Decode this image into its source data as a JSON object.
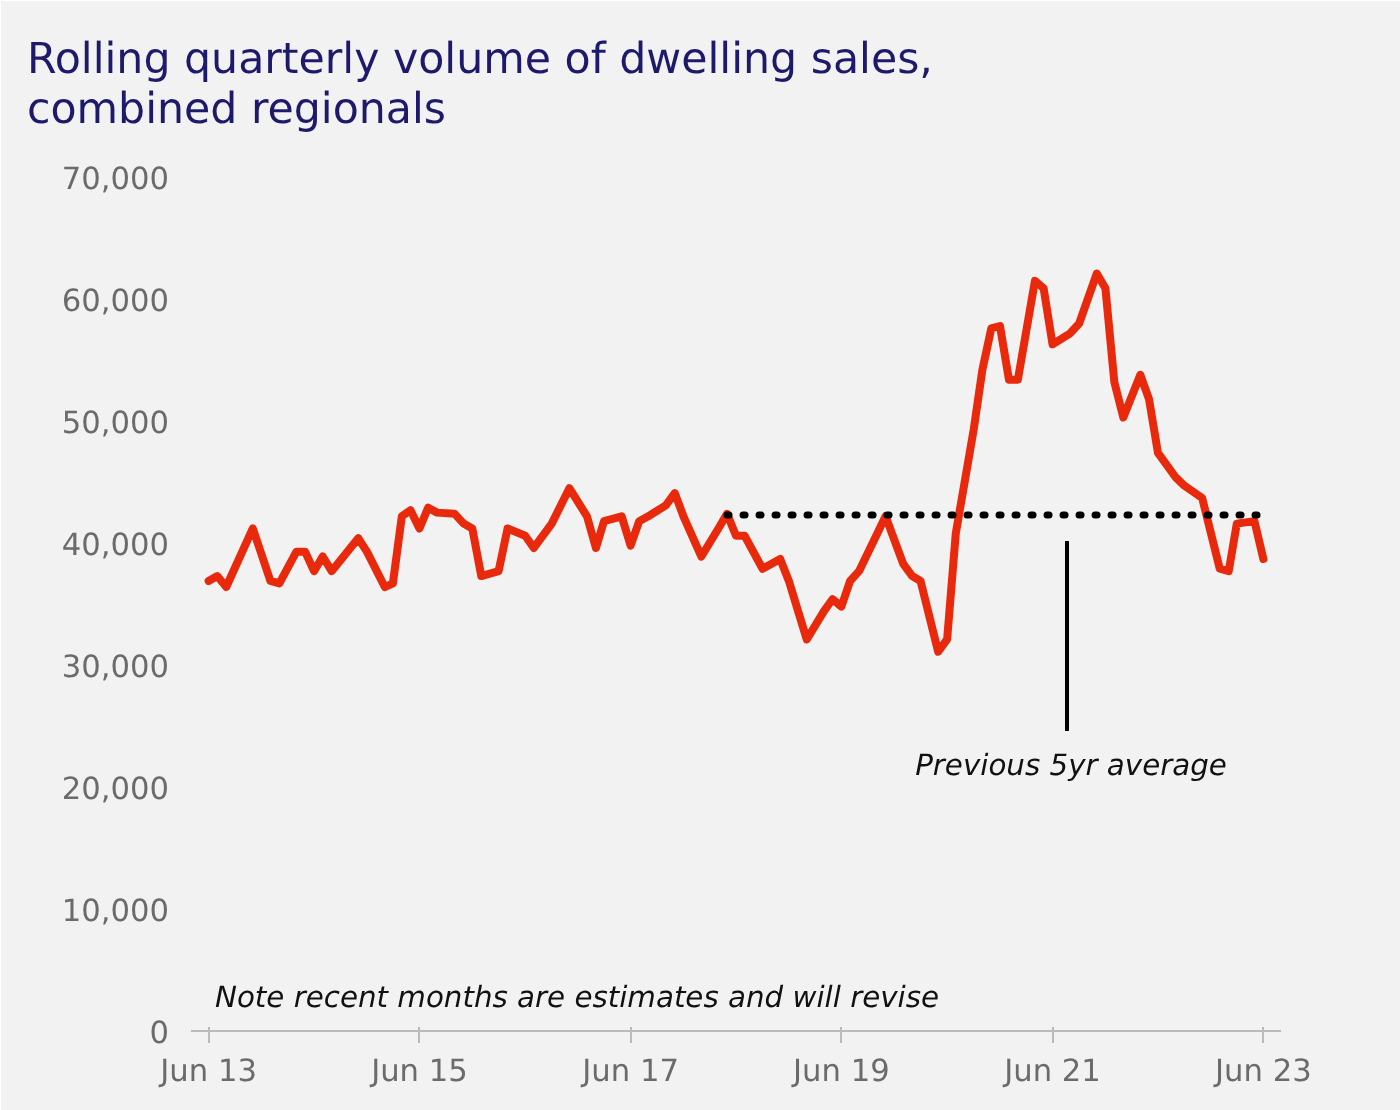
{
  "chart_data": {
    "type": "line",
    "title": "Rolling quarterly volume of dwelling sales, combined regionals",
    "x": [
      "2013-06",
      "2013-07",
      "2013-08",
      "2013-11",
      "2014-01",
      "2014-02",
      "2014-04",
      "2014-05",
      "2014-06",
      "2014-07",
      "2014-08",
      "2014-11",
      "2014-12",
      "2015-02",
      "2015-03",
      "2015-04",
      "2015-05",
      "2015-06",
      "2015-07",
      "2015-08",
      "2015-10",
      "2015-11",
      "2015-12",
      "2016-01",
      "2016-03",
      "2016-04",
      "2016-06",
      "2016-07",
      "2016-09",
      "2016-11",
      "2017-01",
      "2017-02",
      "2017-03",
      "2017-05",
      "2017-06",
      "2017-07",
      "2017-08",
      "2017-10",
      "2017-11",
      "2017-12",
      "2018-02",
      "2018-04",
      "2018-05",
      "2018-06",
      "2018-07",
      "2018-09",
      "2018-11",
      "2018-12",
      "2019-02",
      "2019-04",
      "2019-05",
      "2019-06",
      "2019-07",
      "2019-08",
      "2019-11",
      "2020-01",
      "2020-02",
      "2020-03",
      "2020-05",
      "2020-06",
      "2020-07",
      "2020-09",
      "2020-10",
      "2020-11",
      "2020-12",
      "2021-01",
      "2021-02",
      "2021-04",
      "2021-05",
      "2021-06",
      "2021-08",
      "2021-09",
      "2021-11",
      "2021-12",
      "2022-01",
      "2022-02",
      "2022-04",
      "2022-05",
      "2022-06",
      "2022-08",
      "2022-09",
      "2022-11",
      "2023-01",
      "2023-02",
      "2023-03",
      "2023-05",
      "2023-06"
    ],
    "series": [
      {
        "color": "#e8290b",
        "values": [
          36900,
          37300,
          36400,
          41200,
          36900,
          36700,
          39300,
          39300,
          37700,
          38900,
          37700,
          40400,
          39300,
          36400,
          36700,
          42200,
          42700,
          41200,
          42900,
          42500,
          42400,
          41600,
          41200,
          37300,
          37700,
          41200,
          40600,
          39600,
          41600,
          44500,
          42200,
          39600,
          41800,
          42200,
          39800,
          41800,
          42200,
          43100,
          44100,
          42200,
          38900,
          41200,
          42400,
          40600,
          40600,
          37900,
          38700,
          36900,
          32100,
          34400,
          35400,
          34800,
          36900,
          37700,
          42200,
          38300,
          37300,
          36900,
          31100,
          32100,
          40800,
          49300,
          54200,
          57600,
          57800,
          53400,
          53400,
          61500,
          60900,
          56300,
          57200,
          58000,
          62100,
          60900,
          53200,
          50300,
          53800,
          51800,
          47400,
          45400,
          44700,
          43700,
          37900,
          37700,
          41600,
          41800,
          38700
        ]
      },
      {
        "type": "line",
        "line_style": "dotted",
        "color": "#000000",
        "x": [
          "2018-05",
          "2023-06"
        ],
        "values": [
          42300,
          42300
        ]
      }
    ],
    "annotations": [
      "Previous 5yr average",
      "Note recent months are estimates and will revise"
    ],
    "xlim": [
      "2013-04",
      "2023-08"
    ],
    "xticks": [
      {
        "value": "2013-06",
        "label": "Jun 13"
      },
      {
        "value": "2015-06",
        "label": "Jun 15"
      },
      {
        "value": "2017-06",
        "label": "Jun 17"
      },
      {
        "value": "2019-06",
        "label": "Jun 19"
      },
      {
        "value": "2021-06",
        "label": "Jun 21"
      },
      {
        "value": "2023-06",
        "label": "Jun 23"
      }
    ],
    "ylim": [
      0,
      71000
    ],
    "yticks": [
      {
        "value": 0,
        "label": "0"
      },
      {
        "value": 10000,
        "label": "10,000"
      },
      {
        "value": 20000,
        "label": "20,000"
      },
      {
        "value": 30000,
        "label": "30,000"
      },
      {
        "value": 40000,
        "label": "40,000"
      },
      {
        "value": 50000,
        "label": "50,000"
      },
      {
        "value": 60000,
        "label": "60,000"
      },
      {
        "value": 70000,
        "label": "70,000"
      }
    ],
    "grid": false
  }
}
